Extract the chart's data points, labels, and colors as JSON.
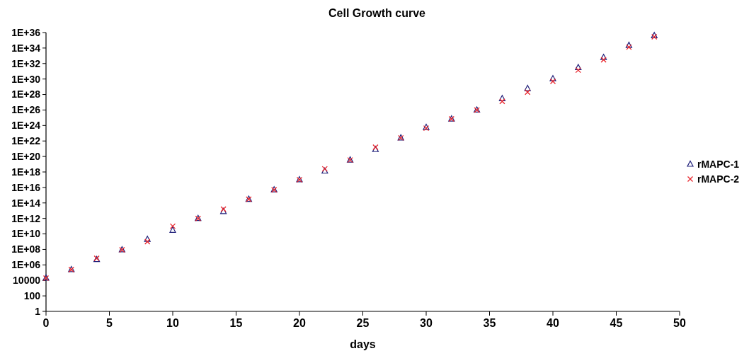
{
  "chart_data": {
    "type": "scatter",
    "title": "Cell Growth curve",
    "xlabel": "days",
    "log": "y",
    "grid": false,
    "legend": "right",
    "x": [
      0,
      2,
      4,
      6,
      8,
      10,
      12,
      14,
      16,
      18,
      20,
      22,
      24,
      26,
      28,
      30,
      32,
      34,
      36,
      38,
      40,
      42,
      44,
      46,
      48
    ],
    "xlim": [
      0,
      50
    ],
    "xticks": [
      0,
      5,
      10,
      15,
      20,
      25,
      30,
      35,
      40,
      45,
      50
    ],
    "ylim": [
      1,
      1e+36
    ],
    "yticks": [
      1,
      100,
      10000,
      {
        "value": 1000000.0,
        "label": "1E+06"
      },
      {
        "value": 100000000.0,
        "label": "1E+08"
      },
      {
        "value": 10000000000.0,
        "label": "1E+10"
      },
      {
        "value": 1000000000000.0,
        "label": "1E+12"
      },
      {
        "value": 100000000000000.0,
        "label": "1E+14"
      },
      {
        "value": 1e+16,
        "label": "1E+16"
      },
      {
        "value": 1e+18,
        "label": "1E+18"
      },
      {
        "value": 1e+20,
        "label": "1E+20"
      },
      {
        "value": 1e+22,
        "label": "1E+22"
      },
      {
        "value": 1e+24,
        "label": "1E+24"
      },
      {
        "value": 1e+26,
        "label": "1E+26"
      },
      {
        "value": 1e+28,
        "label": "1E+28"
      },
      {
        "value": 1e+30,
        "label": "1E+30"
      },
      {
        "value": 1e+32,
        "label": "1E+32"
      },
      {
        "value": 1e+34,
        "label": "1E+34"
      },
      {
        "value": 1e+36,
        "label": "1E+36"
      }
    ],
    "series": [
      {
        "name": "rMAPC-1",
        "color": "#1f1f7a",
        "marker": "triangle",
        "values": [
          20000.0,
          250000.0,
          5000000.0,
          90000000.0,
          2000000000.0,
          30000000000.0,
          1000000000000.0,
          8000000000000.0,
          300000000000000.0,
          5000000000000000.0,
          1e+17,
          1.3e+18,
          3.5e+19,
          8e+20,
          2.5e+22,
          5.6e+23,
          7e+24,
          1e+26,
          3e+27,
          6e+28,
          1.1e+30,
          3e+31,
          6e+32,
          2.2e+34,
          4e+35
        ]
      },
      {
        "name": "rMAPC-2",
        "color": "#e8232a",
        "marker": "cross",
        "values": [
          20000.0,
          250000.0,
          7000000.0,
          90000000.0,
          1000000000.0,
          100000000000.0,
          1000000000000.0,
          16000000000000.0,
          300000000000000.0,
          5000000000000000.0,
          1e+17,
          2.5e+18,
          3.5e+19,
          1.6e+21,
          2.5e+22,
          4.5e+23,
          7e+24,
          1e+26,
          1.3e+27,
          2e+28,
          5e+29,
          1.4e+31,
          3e+32,
          1.3e+34,
          2.8e+35
        ]
      }
    ]
  }
}
